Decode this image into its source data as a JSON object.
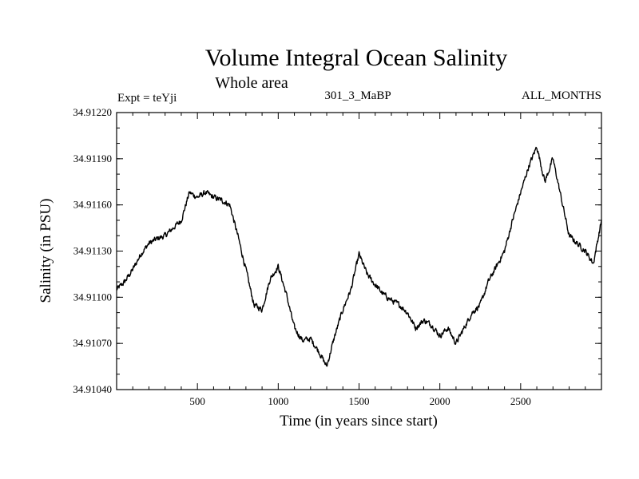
{
  "chart_data": {
    "type": "line",
    "title": "Volume Integral Ocean Salinity",
    "subtitle": "Whole area",
    "annotations": {
      "left": "Expt = teYji",
      "center": "301_3_MaBP",
      "right": "ALL_MONTHS"
    },
    "xlabel": "Time (in years since start)",
    "ylabel": "Salinity (in PSU)",
    "xlim": [
      0,
      3000
    ],
    "ylim": [
      34.9104,
      34.9122
    ],
    "x_ticks": [
      500,
      1000,
      1500,
      2000,
      2500
    ],
    "y_ticks": [
      "34.91040",
      "34.91070",
      "34.91100",
      "34.91130",
      "34.91160",
      "34.91190",
      "34.91220"
    ],
    "grid": false,
    "series": [
      {
        "name": "Salinity",
        "x": [
          0,
          50,
          100,
          150,
          200,
          250,
          300,
          350,
          400,
          450,
          500,
          550,
          600,
          650,
          700,
          750,
          800,
          850,
          900,
          950,
          1000,
          1050,
          1100,
          1150,
          1200,
          1250,
          1300,
          1350,
          1400,
          1450,
          1500,
          1550,
          1600,
          1650,
          1700,
          1750,
          1800,
          1850,
          1900,
          1950,
          2000,
          2050,
          2100,
          2150,
          2200,
          2250,
          2300,
          2350,
          2400,
          2450,
          2500,
          2550,
          2600,
          2650,
          2700,
          2750,
          2800,
          2850,
          2900,
          2950,
          3000
        ],
        "values": [
          34.91105,
          34.9111,
          34.91118,
          34.91128,
          34.91135,
          34.91138,
          34.9114,
          34.91145,
          34.9115,
          34.91168,
          34.91165,
          34.91168,
          34.91165,
          34.91163,
          34.9116,
          34.9114,
          34.91118,
          34.91095,
          34.91092,
          34.91112,
          34.9112,
          34.91102,
          34.9108,
          34.91072,
          34.91073,
          34.91065,
          34.91055,
          34.91075,
          34.91092,
          34.91105,
          34.91128,
          34.91115,
          34.91108,
          34.91102,
          34.91098,
          34.91095,
          34.9109,
          34.9108,
          34.91085,
          34.91082,
          34.91075,
          34.9108,
          34.9107,
          34.9108,
          34.9109,
          34.91095,
          34.9111,
          34.9112,
          34.9113,
          34.9115,
          34.91168,
          34.91185,
          34.91198,
          34.91175,
          34.9119,
          34.91165,
          34.9114,
          34.91135,
          34.9113,
          34.91122,
          34.9115
        ]
      }
    ]
  }
}
